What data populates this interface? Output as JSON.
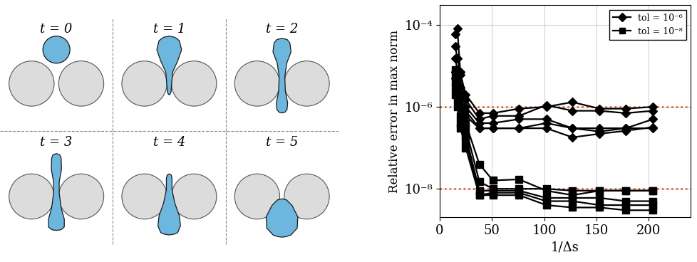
{
  "diagram": {
    "panels": [
      "t = 0",
      "t = 1",
      "t = 2",
      "t = 3",
      "t = 4",
      "t = 5"
    ]
  },
  "chart_data": {
    "type": "line",
    "x_label": "1/Δs",
    "y_label": "Relative error in max norm",
    "log": "y",
    "grid": true,
    "legend": "upper right",
    "xlim": [
      0,
      240
    ],
    "xticks": [
      0,
      50,
      100,
      150,
      200
    ],
    "ylim": [
      2e-09,
      0.0003
    ],
    "yticks": [
      {
        "value": 1e-08,
        "label": "10⁻⁸"
      },
      {
        "value": 1e-06,
        "label": "10⁻⁶"
      },
      {
        "value": 0.0001,
        "label": "10⁻⁴"
      }
    ],
    "reference_lines": {
      "values": [
        1e-06,
        1e-08
      ],
      "color": "#d9541e",
      "line_style": "dotted"
    },
    "x": [
      15,
      17,
      20,
      25,
      38,
      51,
      76,
      102,
      127,
      153,
      178,
      204
    ],
    "series": [
      {
        "name": "tol = 10⁻⁶",
        "color": "#000000",
        "marker": "diamond",
        "line_style": "solid",
        "curves": [
          [
            6e-05,
            8e-05,
            6e-06,
            2e-06,
            7e-07,
            7e-07,
            9e-07,
            1e-06,
            1.3e-06,
            9e-07,
            9e-07,
            1e-06
          ],
          [
            3e-05,
            1.5e-05,
            7e-06,
            1.5e-06,
            5e-07,
            6e-07,
            6e-07,
            1.1e-06,
            8e-07,
            8e-07,
            7e-07,
            8e-07
          ],
          [
            1.5e-05,
            8e-06,
            3e-06,
            1e-06,
            4e-07,
            4e-07,
            5e-07,
            5e-07,
            3e-07,
            3e-07,
            3e-07,
            5e-07
          ],
          [
            7e-06,
            5e-06,
            1.5e-06,
            8e-07,
            3e-07,
            3e-07,
            3e-07,
            4e-07,
            3e-07,
            2.5e-07,
            3e-07,
            3e-07
          ],
          [
            5e-06,
            4e-06,
            1e-06,
            6e-07,
            3e-07,
            3e-07,
            3e-07,
            3e-07,
            1.8e-07,
            2.2e-07,
            2.6e-07,
            3.2e-07
          ]
        ]
      },
      {
        "name": "tol = 10⁻⁸",
        "color": "#000000",
        "marker": "square",
        "line_style": "solid",
        "curves": [
          [
            8e-06,
            5e-06,
            2e-06,
            4e-07,
            4e-08,
            1.6e-08,
            1.7e-08,
            9e-09,
            7e-09,
            9e-09,
            9e-09,
            9e-09
          ],
          [
            6e-06,
            3e-06,
            1e-06,
            3e-07,
            1.5e-08,
            1e-08,
            1e-08,
            1e-08,
            9e-09,
            9e-09,
            9e-09,
            9e-09
          ],
          [
            4e-06,
            2e-06,
            6e-07,
            2e-07,
            9e-09,
            9e-09,
            9e-09,
            6e-09,
            6e-09,
            6e-09,
            5e-09,
            5e-09
          ],
          [
            3e-06,
            1.5e-06,
            4e-07,
            1.5e-07,
            7e-09,
            8e-09,
            8e-09,
            5e-09,
            5e-09,
            4e-09,
            4e-09,
            4e-09
          ],
          [
            2e-06,
            1e-06,
            3e-07,
            1e-07,
            7e-09,
            7e-09,
            7e-09,
            4e-09,
            3.5e-09,
            3.5e-09,
            3e-09,
            3e-09
          ]
        ]
      }
    ]
  }
}
